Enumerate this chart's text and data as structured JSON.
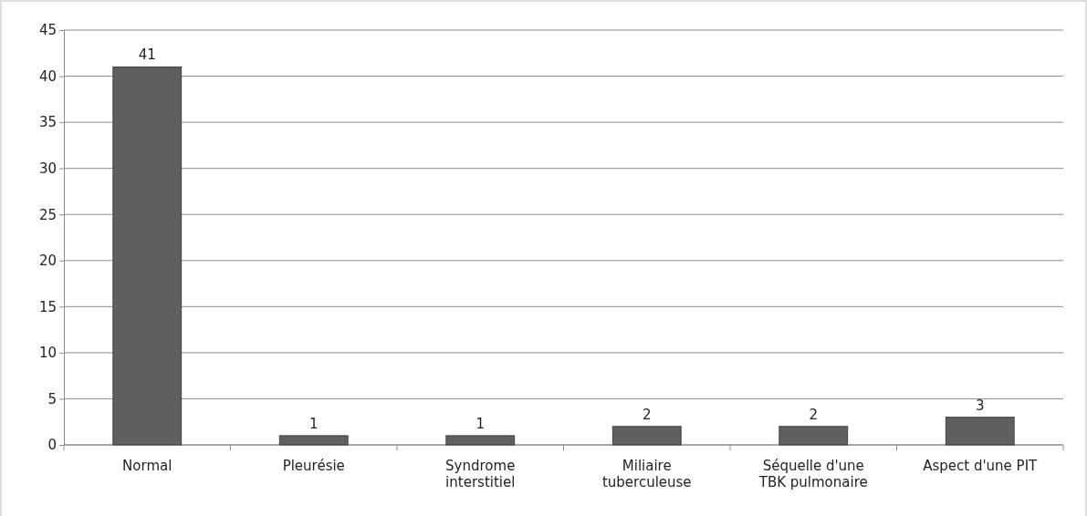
{
  "chart_data": {
    "type": "bar",
    "categories": [
      "Normal",
      "Pleurésie",
      "Syndrome interstitiel",
      "Miliaire tuberculeuse",
      "Séquelle d'une TBK pulmonaire",
      "Aspect d'une PIT"
    ],
    "values": [
      41,
      1,
      1,
      2,
      2,
      3
    ],
    "color": "#5f5f5f",
    "ylim": [
      0,
      45
    ],
    "yticks": [
      0,
      5,
      10,
      15,
      20,
      25,
      30,
      35,
      40,
      45
    ],
    "grid": "y",
    "data_labels": true
  }
}
